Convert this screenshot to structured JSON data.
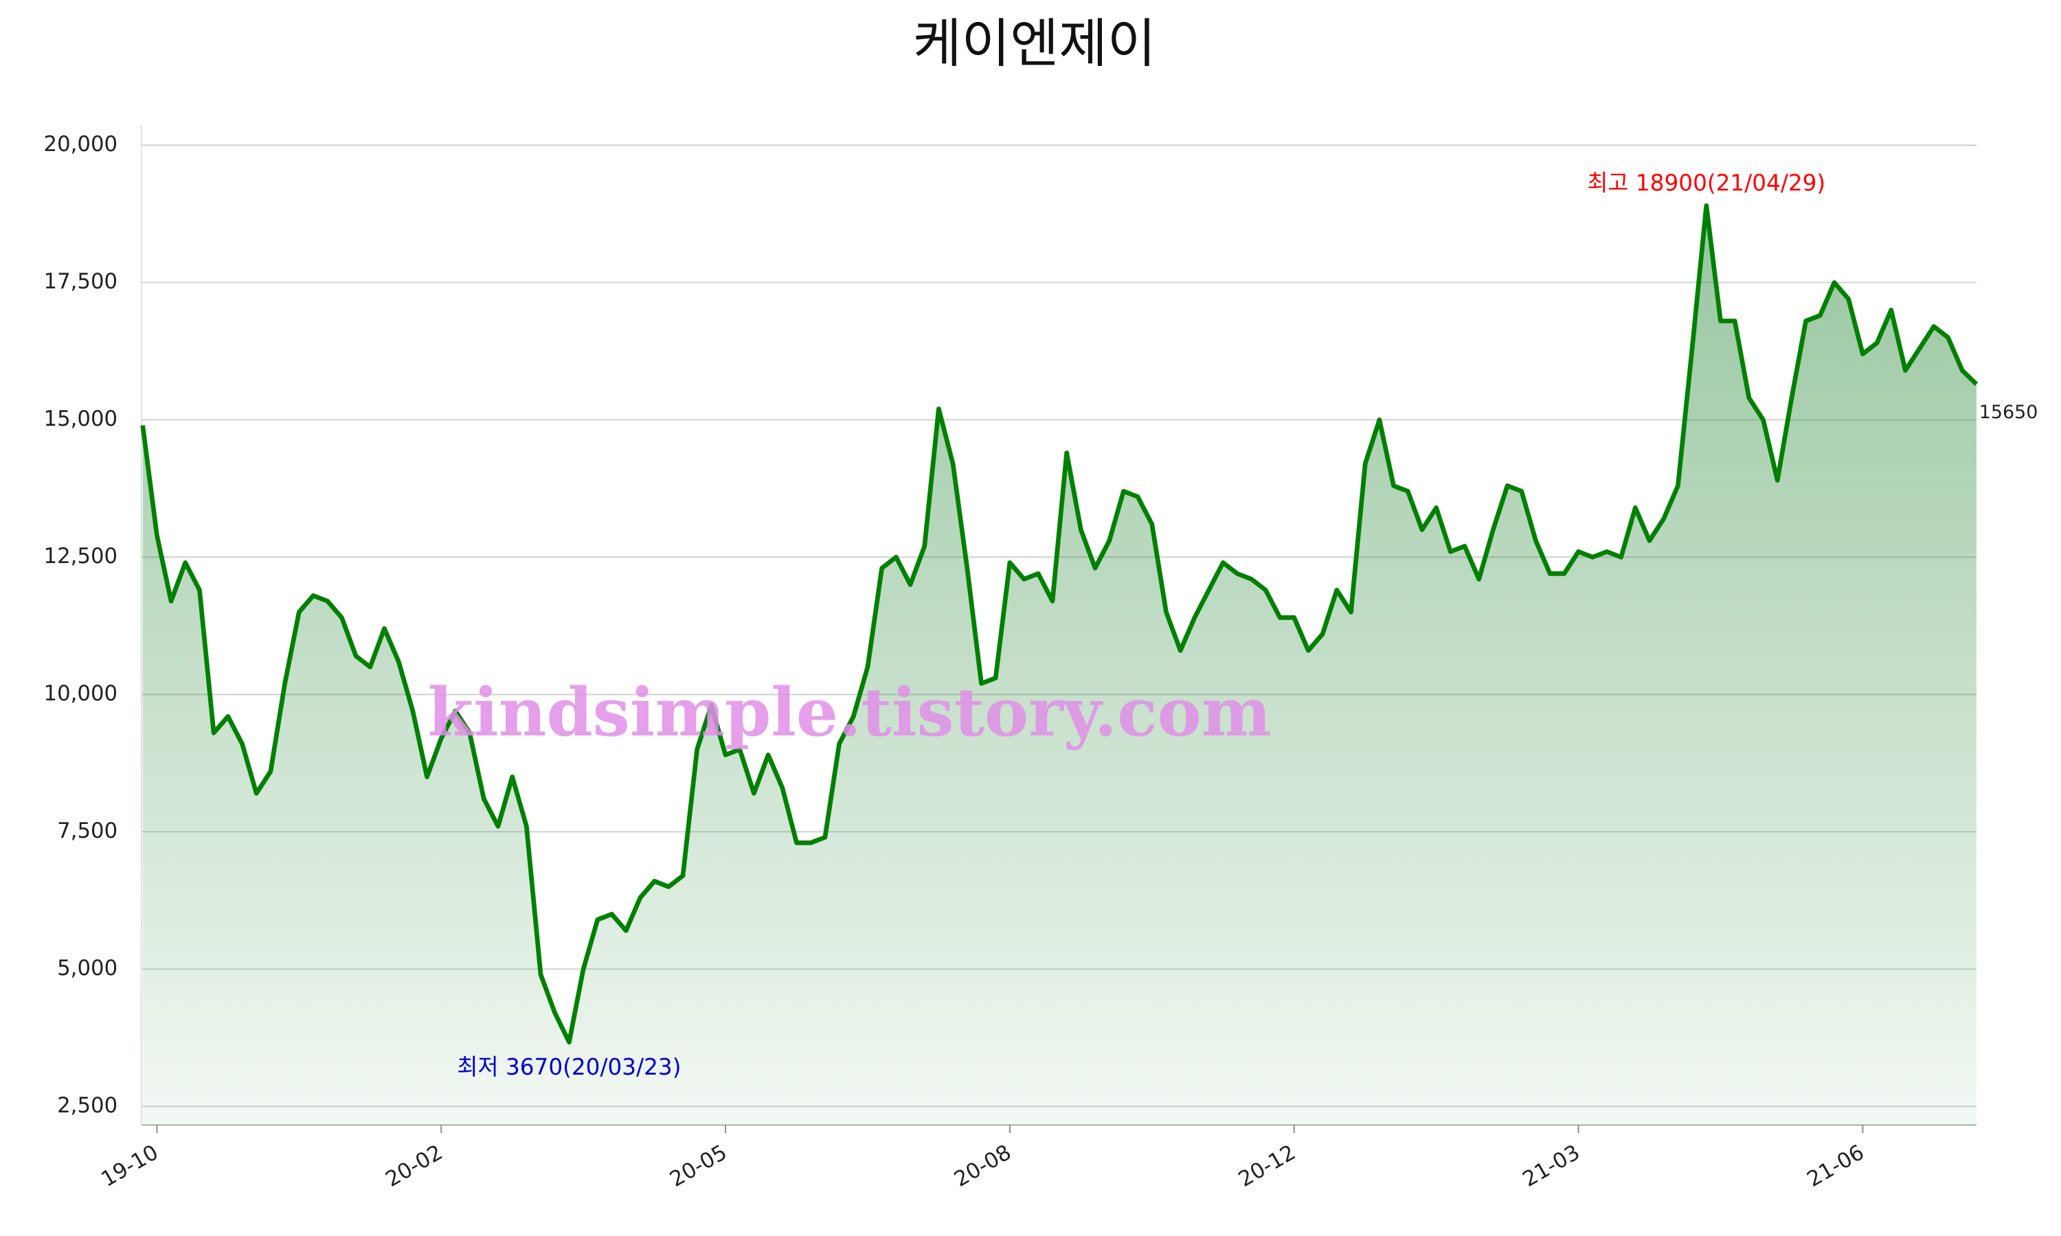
{
  "chart_data": {
    "type": "line",
    "title": "케이엔제이",
    "categories": [
      null,
      "19-10",
      null,
      null,
      null,
      null,
      null,
      null,
      null,
      null,
      null,
      null,
      null,
      null,
      null,
      null,
      null,
      null,
      null,
      null,
      null,
      "20-02",
      null,
      null,
      null,
      null,
      null,
      null,
      null,
      null,
      null,
      null,
      null,
      null,
      null,
      null,
      null,
      null,
      null,
      null,
      null,
      "20-05",
      null,
      null,
      null,
      null,
      null,
      null,
      null,
      null,
      null,
      null,
      null,
      null,
      null,
      null,
      null,
      null,
      null,
      null,
      null,
      "20-08",
      null,
      null,
      null,
      null,
      null,
      null,
      null,
      null,
      null,
      null,
      null,
      null,
      null,
      null,
      null,
      null,
      null,
      null,
      null,
      "20-12",
      null,
      null,
      null,
      null,
      null,
      null,
      null,
      null,
      null,
      null,
      null,
      null,
      null,
      null,
      null,
      null,
      null,
      null,
      null,
      "21-03",
      null,
      null,
      null,
      null,
      null,
      null,
      null,
      null,
      null,
      null,
      null,
      null,
      null,
      null,
      null,
      null,
      null,
      null,
      null,
      "21-06",
      null,
      null,
      null,
      null,
      null,
      null,
      null,
      null
    ],
    "series": [
      {
        "name": "케이엔제이",
        "color": "#008000",
        "values": [
          14900,
          12900,
          11700,
          12400,
          11900,
          9300,
          9600,
          9100,
          8200,
          8600,
          10200,
          11500,
          11800,
          11700,
          11400,
          10700,
          10500,
          11200,
          10600,
          9700,
          8500,
          9200,
          9700,
          9300,
          8100,
          7600,
          8500,
          7600,
          4900,
          4200,
          3670,
          5000,
          5900,
          6000,
          5700,
          6300,
          6600,
          6500,
          6700,
          9000,
          9800,
          8900,
          9000,
          8200,
          8900,
          8300,
          7300,
          7300,
          7400,
          9100,
          9600,
          10500,
          12300,
          12500,
          12000,
          12700,
          15200,
          14200,
          12300,
          10200,
          10300,
          12400,
          12100,
          12200,
          11700,
          14400,
          13000,
          12300,
          12800,
          13700,
          13600,
          13100,
          11500,
          10800,
          11400,
          11900,
          12400,
          12200,
          12100,
          11900,
          11400,
          11400,
          10800,
          11100,
          11900,
          11500,
          14200,
          15000,
          13800,
          13700,
          13000,
          13400,
          12600,
          12700,
          12100,
          13000,
          13800,
          13700,
          12800,
          12200,
          12200,
          12600,
          12500,
          12600,
          12500,
          13400,
          12800,
          13200,
          13800,
          16300,
          18900,
          16800,
          16800,
          15400,
          15000,
          13900,
          15400,
          16800,
          16900,
          17500,
          17200,
          16200,
          16400,
          17000,
          15900,
          16300,
          16700,
          16500,
          15900,
          15650
        ]
      }
    ],
    "ylim": [
      2160,
      20360
    ],
    "yticks": [
      {
        "value": 2500,
        "label": "2,500"
      },
      {
        "value": 5000,
        "label": "5,000"
      },
      {
        "value": 7500,
        "label": "7,500"
      },
      {
        "value": 10000,
        "label": "10,000"
      },
      {
        "value": 12500,
        "label": "12,500"
      },
      {
        "value": 15000,
        "label": "15,000"
      },
      {
        "value": 17500,
        "label": "17,500"
      },
      {
        "value": 20000,
        "label": "20,000"
      }
    ],
    "grid": true,
    "annotations": [
      {
        "text": "최고 18900(21/04/29)",
        "index": 110,
        "color": "#ff0000",
        "position": "above"
      },
      {
        "text": "최저 3670(20/03/23)",
        "index": 30,
        "color": "#0000cc",
        "position": "below"
      },
      {
        "text": "15650",
        "index": 129,
        "color": "#222222",
        "position": "right"
      }
    ],
    "watermark": "kindsimple.tistory.com"
  }
}
